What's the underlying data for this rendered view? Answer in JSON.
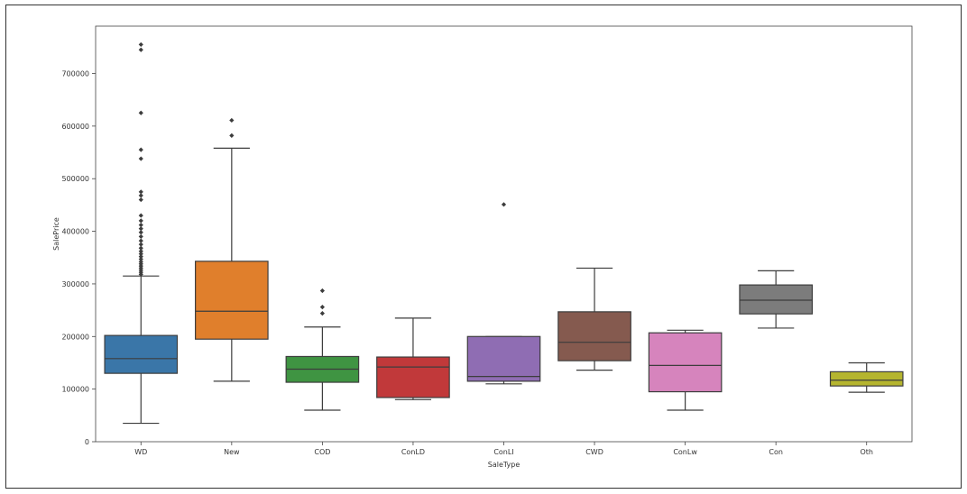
{
  "chart_data": {
    "type": "boxplot",
    "title": "",
    "xlabel": "SaleType",
    "ylabel": "SalePrice",
    "ylim": [
      0,
      790000
    ],
    "yticks": [
      0,
      100000,
      200000,
      300000,
      400000,
      500000,
      600000,
      700000
    ],
    "ytick_labels": [
      "0",
      "100000",
      "200000",
      "300000",
      "400000",
      "500000",
      "600000",
      "700000"
    ],
    "grid": false,
    "legend": "none",
    "categories": [
      "WD",
      "New",
      "COD",
      "ConLD",
      "ConLI",
      "CWD",
      "ConLw",
      "Con",
      "Oth"
    ],
    "boxes": [
      {
        "category": "WD",
        "color": "#3a76a8",
        "whisker_low": 35000,
        "q1": 130000,
        "median": 158000,
        "q3": 202000,
        "whisker_high": 315000,
        "outliers": [
          318000,
          322000,
          326000,
          330000,
          334000,
          338000,
          342000,
          347000,
          352000,
          357000,
          362000,
          368000,
          375000,
          382000,
          390000,
          398000,
          405000,
          412000,
          420000,
          430000,
          460000,
          468000,
          475000,
          538000,
          555000,
          625000,
          745000,
          755000
        ]
      },
      {
        "category": "New",
        "color": "#e07f2c",
        "whisker_low": 115000,
        "q1": 195000,
        "median": 248000,
        "q3": 343000,
        "whisker_high": 558000,
        "outliers": [
          582000,
          611000
        ]
      },
      {
        "category": "COD",
        "color": "#3f9442",
        "whisker_low": 60000,
        "q1": 113000,
        "median": 138000,
        "q3": 162000,
        "whisker_high": 218000,
        "outliers": [
          244000,
          256000,
          287000
        ]
      },
      {
        "category": "ConLD",
        "color": "#c1393a",
        "whisker_low": 80000,
        "q1": 84000,
        "median": 142000,
        "q3": 161000,
        "whisker_high": 235000,
        "outliers": []
      },
      {
        "category": "ConLI",
        "color": "#8f6db3",
        "whisker_low": 110000,
        "q1": 115000,
        "median": 124000,
        "q3": 200000,
        "whisker_high": 200000,
        "outliers": [
          451000
        ]
      },
      {
        "category": "CWD",
        "color": "#855a4f",
        "whisker_low": 136000,
        "q1": 154000,
        "median": 189000,
        "q3": 247000,
        "whisker_high": 330000,
        "outliers": []
      },
      {
        "category": "ConLw",
        "color": "#d684bd",
        "whisker_low": 60000,
        "q1": 95000,
        "median": 145000,
        "q3": 207000,
        "whisker_high": 212000,
        "outliers": []
      },
      {
        "category": "Con",
        "color": "#7c7c7c",
        "whisker_low": 216000,
        "q1": 243000,
        "median": 269000,
        "q3": 298000,
        "whisker_high": 325000,
        "outliers": []
      },
      {
        "category": "Oth",
        "color": "#b5b52f",
        "whisker_low": 94000,
        "q1": 106000,
        "median": 117000,
        "q3": 133000,
        "whisker_high": 150000,
        "outliers": []
      }
    ]
  }
}
